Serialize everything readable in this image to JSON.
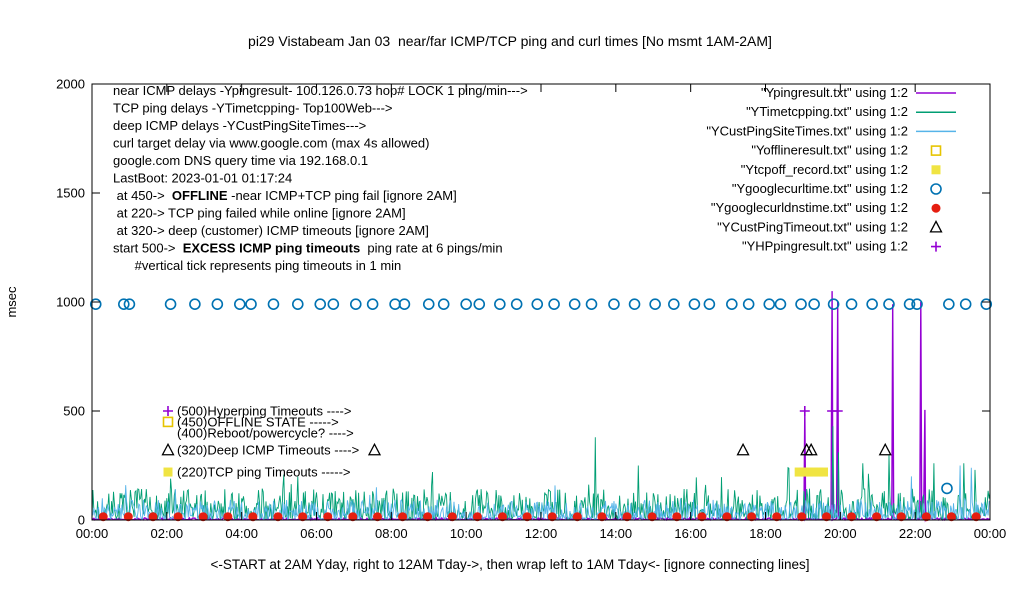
{
  "title": "pi29 Vistabeam Jan 03  near/far ICMP/TCP ping and curl times [No msmt 1AM-2AM]",
  "axes": {
    "ylabel": "msec",
    "yticks": [
      0,
      500,
      1000,
      1500,
      2000
    ],
    "xtick_labels": [
      "00:00",
      "02:00",
      "04:00",
      "06:00",
      "08:00",
      "10:00",
      "12:00",
      "14:00",
      "16:00",
      "18:00",
      "20:00",
      "22:00",
      "00:00"
    ],
    "xlabel": "<-START at 2AM Yday, right to 12AM Tday->, then wrap left to 1AM Tday<- [ignore connecting lines]"
  },
  "legend": {
    "rows": [
      {
        "label": "\"Ypingresult.txt\" using 1:2",
        "style": "line",
        "color": "#9400d3"
      },
      {
        "label": "\"YTimetcpping.txt\" using 1:2",
        "style": "line",
        "color": "#009e73"
      },
      {
        "label": "\"YCustPingSiteTimes.txt\" using 1:2",
        "style": "line",
        "color": "#56b4e9"
      },
      {
        "label": "\"Yofflineresult.txt\" using 1:2",
        "style": "open-square",
        "color": "#e6c400"
      },
      {
        "label": "\"Ytcpoff_record.txt\" using 1:2",
        "style": "filled-square",
        "color": "#f0e442"
      },
      {
        "label": "\"Ygooglecurltime.txt\" using 1:2",
        "style": "open-circle",
        "color": "#0072b2"
      },
      {
        "label": "\"Ygooglecurldnstime.txt\" using 1:2",
        "style": "filled-circle",
        "color": "#e51e10"
      },
      {
        "label": "\"YCustPingTimeout.txt\" using 1:2",
        "style": "open-triangle",
        "color": "#000000"
      },
      {
        "label": "\"YHPpingresult.txt\" using 1:2",
        "style": "plus",
        "color": "#9400d3"
      }
    ]
  },
  "annotations": {
    "info_lines": [
      [
        {
          "t": "near ICMP delays -Ypingresult- 100.126.0.73 hop# LOCK 1 ping/min--->"
        }
      ],
      [
        {
          "t": "TCP ping delays -YTimetcpping- Top100Web--->"
        }
      ],
      [
        {
          "t": "deep ICMP delays -YCustPingSiteTimes--->"
        }
      ],
      [
        {
          "t": "curl target delay via www.google.com (max 4s allowed)"
        }
      ],
      [
        {
          "t": "google.com DNS query time via 192.168.0.1"
        }
      ],
      [
        {
          "t": "LastBoot: 2023-01-01 01:17:24"
        }
      ],
      [
        {
          "t": " at 450->  "
        },
        {
          "t": "OFFLINE",
          "b": true
        },
        {
          "t": " -near ICMP+TCP ping fail [ignore 2AM]"
        }
      ],
      [
        {
          "t": " at 220-> TCP ping failed while online [ignore 2AM]"
        }
      ],
      [
        {
          "t": " at 320-> deep (customer) ICMP timeouts [ignore 2AM]"
        }
      ],
      [
        {
          "t": "start 500->  "
        },
        {
          "t": "EXCESS ICMP ping timeouts",
          "b": true
        },
        {
          "t": "  ping rate at 6 pings/min"
        }
      ],
      [
        {
          "t": "      #vertical tick represents ping timeouts in 1 min"
        }
      ]
    ],
    "level_labels": [
      {
        "value": 500,
        "marker": "plus",
        "color": "#9400d3",
        "text": "(500)Hyperping Timeouts ---->"
      },
      {
        "value": 450,
        "marker": "open-square",
        "color": "#e6c400",
        "text": "(450)OFFLINE STATE ----->"
      },
      {
        "value": 400,
        "marker": "none",
        "color": "#000000",
        "text": "(400)Reboot/powercycle? ---->"
      },
      {
        "value": 320,
        "marker": "open-triangle",
        "color": "#000000",
        "text": "(320)Deep ICMP Timeouts ---->"
      },
      {
        "value": 220,
        "marker": "filled-square",
        "color": "#f0e442",
        "text": "(220)TCP ping Timeouts ----->"
      }
    ]
  },
  "chart_data": {
    "type": "line",
    "x_unit": "hours_of_day",
    "x_range": [
      0,
      24
    ],
    "y_range": [
      0,
      2000
    ],
    "grid": false,
    "legend_position": "top-right-inside",
    "series": [
      {
        "name": "Ypingresult",
        "style": "line",
        "color": "#9400d3",
        "width": 1.4,
        "seed": 11,
        "noise": {
          "base": 1,
          "amp": 9,
          "spike_prob": 0,
          "spike_amp": 0
        },
        "spikes": [
          [
            19.05,
            500
          ],
          [
            19.78,
            1050
          ],
          [
            19.93,
            1000
          ],
          [
            21.4,
            990
          ],
          [
            22.15,
            1000
          ],
          [
            22.26,
            505
          ]
        ]
      },
      {
        "name": "YTimetcpping",
        "style": "line",
        "color": "#009e73",
        "width": 0.9,
        "seed": 7,
        "noise": {
          "base": 4,
          "amp": 140,
          "spike_prob": 0.05,
          "spike_amp": 120
        },
        "spikes": [
          [
            2.1,
            190
          ],
          [
            5.5,
            200
          ],
          [
            9.1,
            220
          ],
          [
            13.45,
            380
          ],
          [
            14.6,
            250
          ],
          [
            18.6,
            240
          ],
          [
            19.8,
            430
          ],
          [
            19.95,
            310
          ],
          [
            20.6,
            260
          ],
          [
            21.3,
            300
          ],
          [
            22.5,
            260
          ],
          [
            23.3,
            260
          ],
          [
            23.6,
            230
          ]
        ]
      },
      {
        "name": "YCustPingSiteTimes",
        "style": "line",
        "color": "#56b4e9",
        "width": 0.9,
        "seed": 3,
        "noise": {
          "base": 3,
          "amp": 90,
          "spike_prob": 0.03,
          "spike_amp": 80
        },
        "spikes": [
          [
            0.9,
            160
          ],
          [
            7.6,
            150
          ],
          [
            21.9,
            200
          ],
          [
            23.2,
            250
          ],
          [
            23.5,
            240
          ]
        ]
      },
      {
        "name": "Yofflineresult",
        "style": "open-square",
        "color": "#e6c400",
        "points": []
      },
      {
        "name": "Ytcpoff_record",
        "style": "filled-square",
        "color": "#f0e442",
        "points": [
          [
            18.9,
            220
          ],
          [
            19.03,
            220
          ],
          [
            19.16,
            220
          ],
          [
            19.29,
            220
          ],
          [
            19.42,
            220
          ],
          [
            19.55,
            220
          ]
        ]
      },
      {
        "name": "Ygooglecurltime",
        "style": "open-circle",
        "color": "#0072b2",
        "value": 990,
        "hours": [
          0.1,
          0.85,
          1.0,
          2.1,
          2.75,
          3.35,
          3.95,
          4.25,
          4.85,
          5.5,
          6.1,
          6.45,
          7.05,
          7.5,
          8.1,
          8.35,
          9.0,
          9.4,
          10.0,
          10.35,
          10.9,
          11.35,
          11.9,
          12.35,
          12.9,
          13.35,
          13.95,
          14.5,
          15.05,
          15.55,
          16.1,
          16.5,
          17.1,
          17.55,
          18.1,
          18.4,
          18.95,
          19.3,
          19.82,
          20.3,
          20.85,
          21.3,
          21.85,
          22.05,
          22.9,
          23.35,
          23.9
        ],
        "points": [
          [
            22.85,
            145
          ]
        ]
      },
      {
        "name": "Ygooglecurldnstime",
        "style": "filled-circle",
        "color": "#e51e10",
        "value": 15,
        "hours": [
          0.3,
          0.97,
          1.63,
          2.3,
          2.97,
          3.63,
          4.3,
          4.97,
          5.63,
          6.3,
          6.97,
          7.63,
          8.3,
          8.97,
          9.63,
          10.3,
          10.97,
          11.63,
          12.3,
          12.97,
          13.63,
          14.3,
          14.97,
          15.63,
          16.3,
          16.97,
          17.63,
          18.3,
          18.97,
          19.63,
          20.3,
          20.97,
          21.63,
          22.3,
          22.97,
          23.63
        ],
        "points": []
      },
      {
        "name": "YCustPingTimeout",
        "style": "open-triangle",
        "color": "#000000",
        "points": [
          [
            7.55,
            320
          ],
          [
            17.4,
            320
          ],
          [
            19.1,
            320
          ],
          [
            19.22,
            320
          ],
          [
            21.2,
            320
          ]
        ]
      },
      {
        "name": "YHPpingresult",
        "style": "plus",
        "color": "#9400d3",
        "points": [
          [
            19.05,
            500
          ],
          [
            19.78,
            500
          ],
          [
            19.93,
            500
          ]
        ]
      }
    ]
  }
}
